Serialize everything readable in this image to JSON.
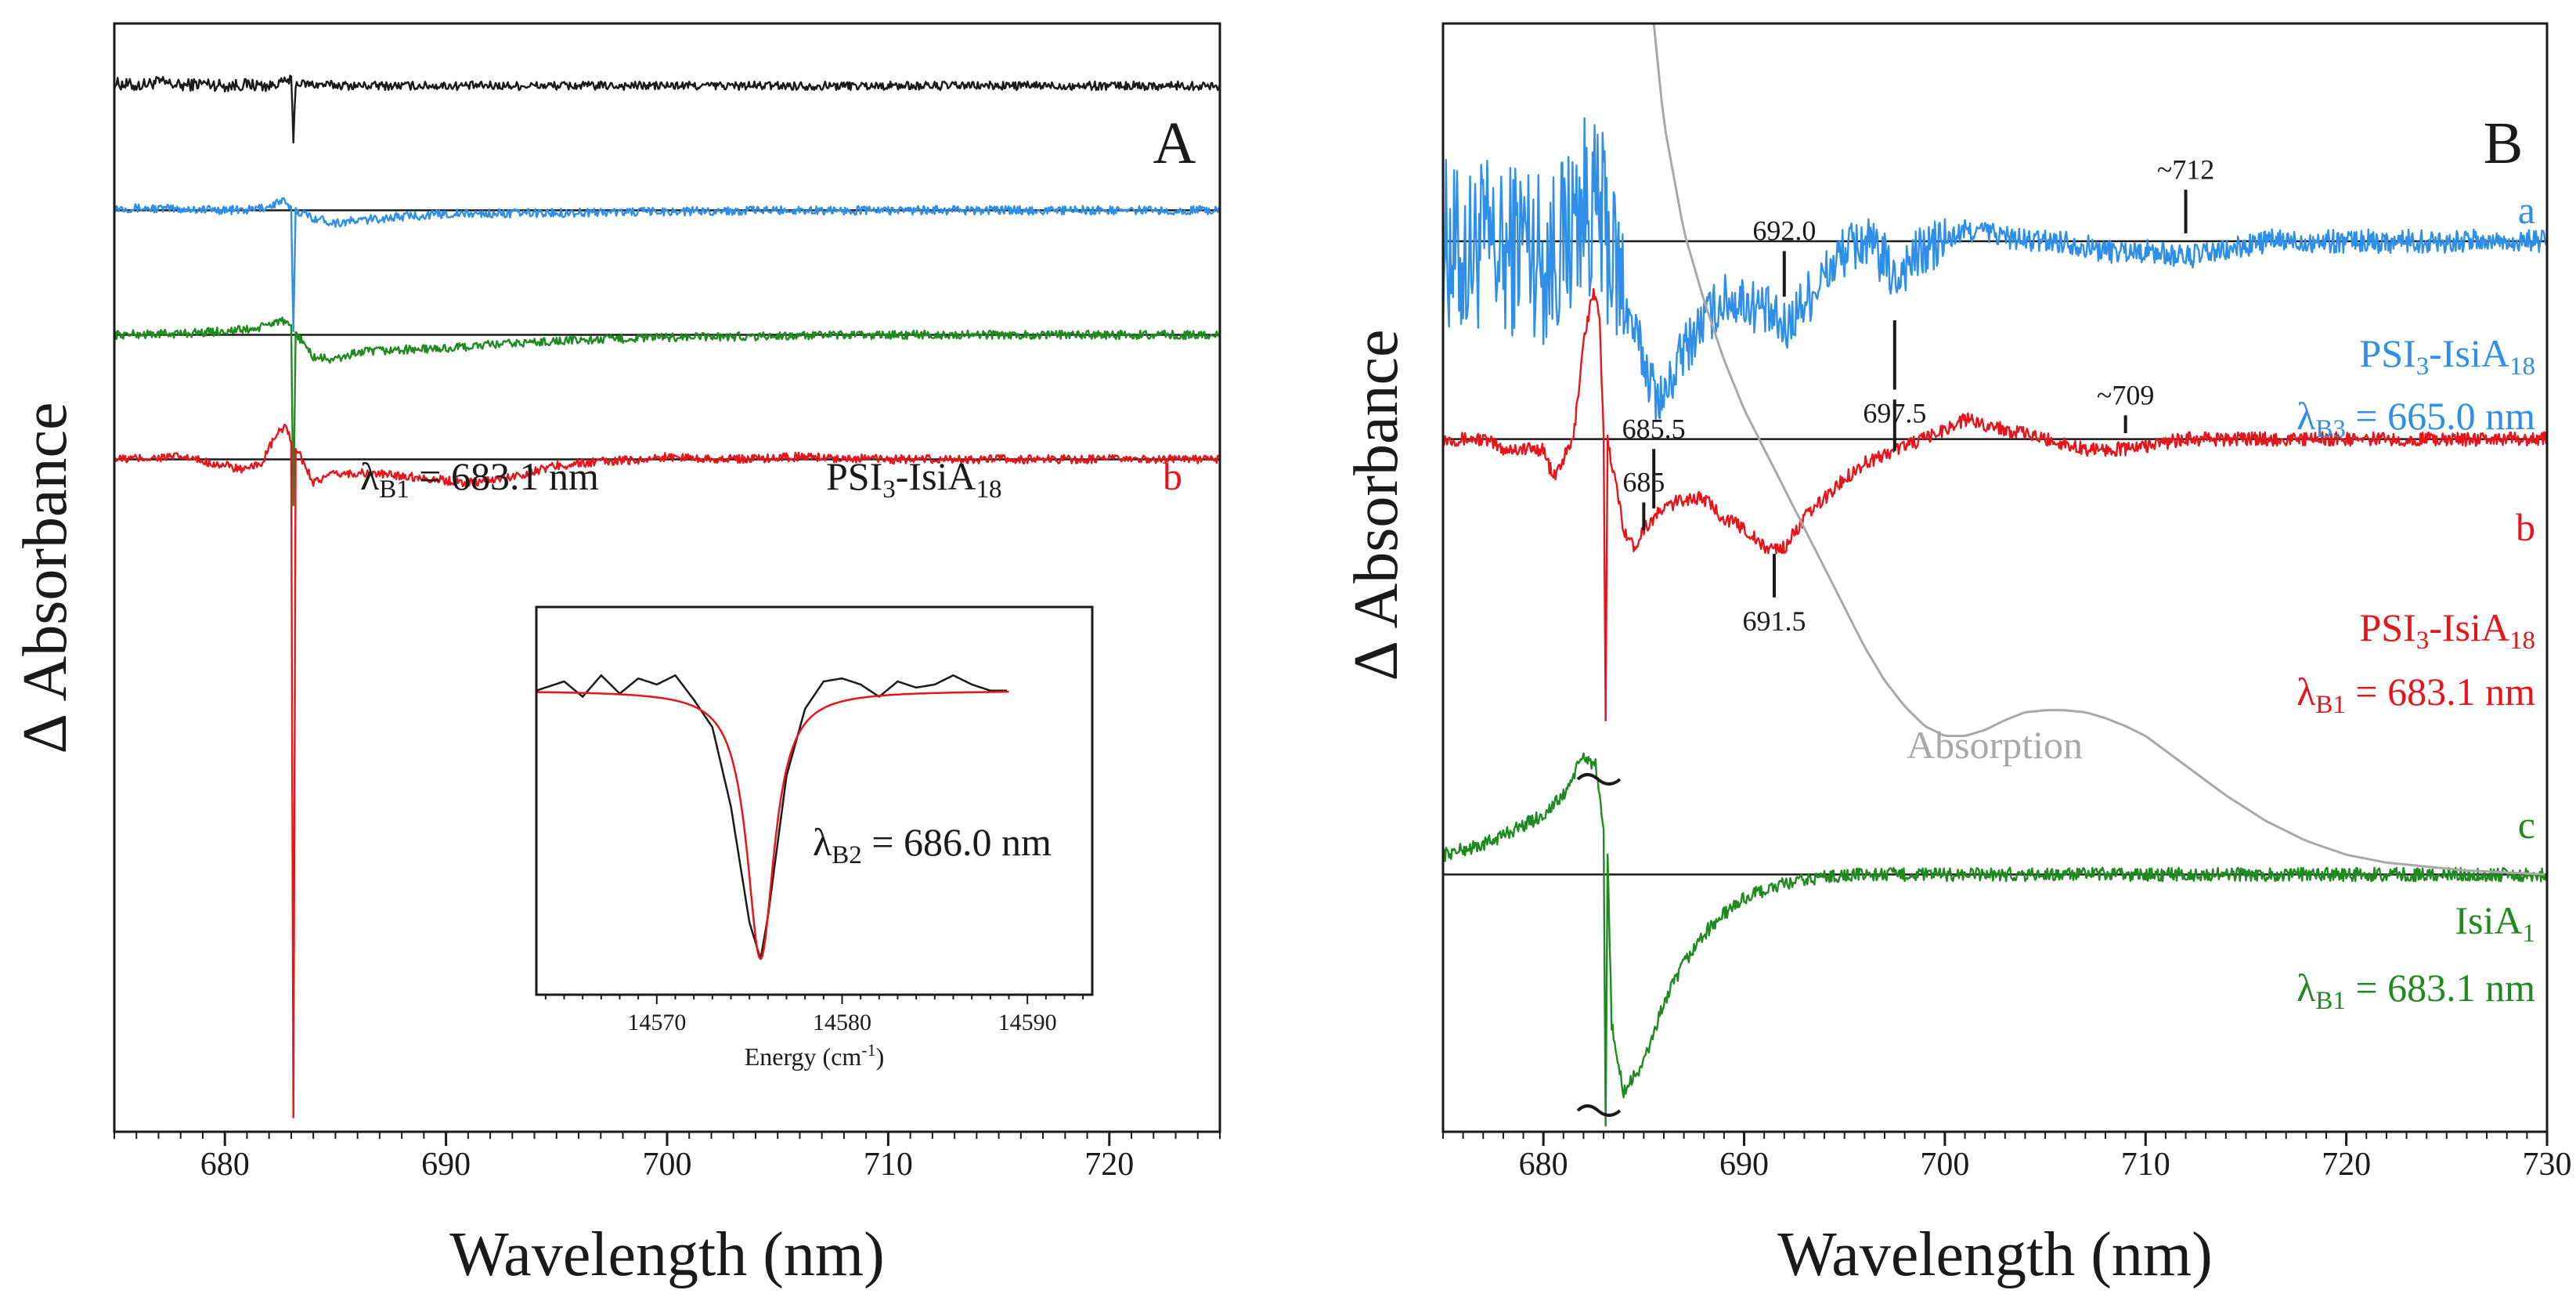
{
  "colors": {
    "black": "#1a1a1a",
    "blue": "#2f8fe8",
    "green": "#1f8a1f",
    "red": "#e8141a",
    "gray": "#a8a8a8"
  },
  "chart_data": [
    {
      "id": "A",
      "type": "line",
      "panel_label": "A",
      "xlabel": "Wavelength (nm)",
      "ylabel": "Δ Absorbance",
      "xlim": [
        675,
        725
      ],
      "ylim": [
        -8.4,
        0.5
      ],
      "xticks": [
        "680",
        "690",
        "700",
        "710",
        "720"
      ],
      "series": [
        {
          "name": "black trace",
          "color": "black",
          "offset": 0,
          "x": [
            675,
            676,
            677,
            678,
            679,
            680,
            681,
            682,
            683,
            683.1,
            683.2,
            684,
            686,
            690,
            695,
            700,
            705,
            710,
            715,
            720,
            725
          ],
          "y": [
            0.02,
            0.0,
            0.03,
            0.0,
            0.02,
            0.0,
            0.01,
            0.0,
            0.05,
            -0.45,
            0.02,
            0.01,
            0.0,
            0.0,
            0.0,
            0.0,
            0.0,
            0.0,
            0.0,
            0.0,
            0.0
          ]
        },
        {
          "name": "blue trace",
          "color": "blue",
          "offset": -1.0,
          "x": [
            675,
            678,
            681,
            682,
            682.6,
            683,
            683.1,
            683.2,
            684,
            685,
            688,
            690,
            695,
            700,
            705,
            710,
            715,
            720,
            725
          ],
          "y": [
            0.02,
            0.01,
            0.0,
            0.03,
            0.08,
            0.0,
            -0.95,
            0.0,
            -0.06,
            -0.1,
            -0.05,
            -0.03,
            -0.02,
            -0.01,
            0.0,
            0.0,
            0.0,
            0.0,
            0.0
          ]
        },
        {
          "name": "green trace",
          "color": "green",
          "offset": -2.0,
          "x": [
            675,
            678,
            680,
            681.5,
            682.5,
            683,
            683.1,
            683.2,
            684,
            685,
            686,
            688,
            690,
            692,
            695,
            700,
            705,
            710,
            715,
            720,
            725
          ],
          "y": [
            0.0,
            0.01,
            0.03,
            0.05,
            0.12,
            0.05,
            -1.4,
            0.02,
            -0.18,
            -0.2,
            -0.14,
            -0.12,
            -0.11,
            -0.08,
            -0.05,
            -0.02,
            -0.01,
            0.0,
            0.0,
            0.0,
            0.0
          ]
        },
        {
          "name": "red trace",
          "color": "red",
          "offset": -3.0,
          "x": [
            675,
            678,
            680,
            681,
            681.7,
            682.3,
            682.8,
            683,
            683.1,
            683.2,
            684,
            685,
            686,
            688,
            690,
            691,
            693,
            695,
            697,
            699,
            700,
            703,
            706,
            710,
            715,
            720,
            725
          ],
          "y": [
            0.0,
            0.02,
            -0.05,
            -0.09,
            -0.02,
            0.19,
            0.27,
            0.1,
            -5.3,
            0.1,
            -0.18,
            -0.12,
            -0.11,
            -0.13,
            -0.17,
            -0.19,
            -0.14,
            -0.05,
            -0.02,
            0.0,
            0.02,
            0.0,
            0.02,
            0.0,
            0.0,
            0.0,
            0.0
          ]
        }
      ],
      "baselines": [
        {
          "y": -1.0
        },
        {
          "y": -2.0
        },
        {
          "y": -3.0
        }
      ],
      "annotations": {
        "lambda_b1": "λB1 = 683.1 nm",
        "psi_label": "PSI3-IsiA18",
        "trace_b": "b"
      },
      "inset": {
        "xlabel": "Energy (cm-1)",
        "xlim": [
          14563.5,
          14593.5
        ],
        "xticks": [
          "14570",
          "14580",
          "14590"
        ],
        "annotation": "λB2 = 686.0 nm",
        "data": {
          "x": [
            14563.5,
            14565,
            14566,
            14567,
            14568,
            14569,
            14570,
            14571,
            14572,
            14573,
            14574,
            14575,
            14575.6,
            14576,
            14577,
            14578,
            14579,
            14580,
            14581,
            14582,
            14583,
            14584,
            14585,
            14586,
            14587,
            14588,
            14589
          ],
          "y": [
            0.0,
            0.15,
            -0.1,
            0.25,
            -0.05,
            0.2,
            0.1,
            0.25,
            -0.15,
            -0.6,
            -1.9,
            -3.8,
            -4.4,
            -3.7,
            -1.4,
            -0.3,
            0.15,
            0.2,
            0.1,
            -0.1,
            0.15,
            0.05,
            0.1,
            0.25,
            0.1,
            0.0,
            0.0
          ]
        },
        "fit": {
          "center": 14575.6,
          "width": 0.9,
          "depth": 4.4
        }
      }
    },
    {
      "id": "B",
      "type": "line",
      "panel_label": "B",
      "xlabel": "Wavelength (nm)",
      "ylabel": "Δ Absorbance",
      "xlim": [
        675,
        730
      ],
      "ylim": [
        -3.5,
        2.1
      ],
      "xticks": [
        "680",
        "690",
        "700",
        "710",
        "720",
        "730"
      ],
      "series": [
        {
          "name": "a: PSI3-IsiA18, λB3 = 665.0 nm",
          "color": "blue",
          "offset": 1.0,
          "x": [
            675,
            676,
            677,
            678,
            679,
            680,
            681,
            682,
            683,
            684,
            685,
            685.5,
            686,
            687,
            688,
            689,
            690,
            691,
            692,
            693,
            694,
            695,
            696,
            697,
            697.5,
            698,
            699,
            700,
            701,
            702,
            704,
            706,
            708,
            710,
            712,
            714,
            716,
            720,
            725,
            730
          ],
          "y": [
            0.0,
            -0.1,
            0.0,
            -0.1,
            0.05,
            -0.1,
            0.0,
            0.2,
            0.1,
            -0.3,
            -0.6,
            -0.75,
            -0.8,
            -0.55,
            -0.4,
            -0.3,
            -0.3,
            -0.35,
            -0.45,
            -0.3,
            -0.18,
            -0.05,
            0.0,
            -0.1,
            -0.2,
            -0.12,
            -0.05,
            0.0,
            0.05,
            0.05,
            0.0,
            0.0,
            -0.05,
            -0.05,
            -0.08,
            -0.05,
            0.0,
            0.0,
            0.0,
            0.0
          ]
        },
        {
          "name": "b: PSI3-IsiA18, λB1 = 683.1 nm",
          "color": "red",
          "offset": 0.0,
          "x": [
            675,
            677,
            678,
            679,
            680,
            680.5,
            681,
            681.5,
            682,
            682.5,
            682.8,
            683,
            683.1,
            683.2,
            684,
            684.5,
            685,
            686,
            687,
            688,
            689,
            690,
            691,
            692,
            693,
            694,
            695,
            696,
            697,
            698,
            699,
            700,
            701,
            703,
            705,
            707,
            709,
            712,
            715,
            720,
            725,
            730
          ],
          "y": [
            0.0,
            0.0,
            -0.05,
            -0.05,
            -0.05,
            -0.2,
            -0.1,
            0.0,
            0.5,
            0.75,
            0.6,
            0.0,
            -1.4,
            0.0,
            -0.45,
            -0.55,
            -0.45,
            -0.35,
            -0.3,
            -0.3,
            -0.4,
            -0.45,
            -0.55,
            -0.55,
            -0.4,
            -0.3,
            -0.2,
            -0.12,
            -0.08,
            -0.03,
            0.0,
            0.05,
            0.1,
            0.05,
            0.0,
            -0.05,
            -0.05,
            0.0,
            0.0,
            0.0,
            0.0,
            0.0
          ]
        },
        {
          "name": "c: IsiA1, λB1 = 683.1 nm",
          "color": "green",
          "offset": -2.2,
          "x": [
            675,
            677,
            678,
            679,
            680,
            681,
            681.5,
            682,
            682.6,
            683,
            683.1,
            683.2,
            683.4,
            683.6,
            684,
            685,
            686,
            687,
            688,
            689,
            690,
            691,
            692,
            693,
            694,
            696,
            700,
            705,
            710,
            720,
            730
          ],
          "y": [
            0.1,
            0.15,
            0.2,
            0.25,
            0.3,
            0.4,
            0.5,
            0.6,
            0.55,
            0.2,
            -1.3,
            0.1,
            -0.75,
            -0.9,
            -1.1,
            -0.95,
            -0.65,
            -0.45,
            -0.3,
            -0.2,
            -0.12,
            -0.08,
            -0.05,
            -0.03,
            -0.01,
            0.0,
            0.0,
            0.0,
            0.0,
            0.0,
            0.0
          ]
        },
        {
          "name": "Absorption",
          "color": "gray",
          "offset": 0.0,
          "x": [
            685.5,
            686,
            687,
            688,
            689,
            690,
            691,
            692,
            693,
            694,
            695,
            696,
            697,
            698,
            699,
            700,
            701,
            702,
            703,
            704,
            705,
            706,
            707,
            708,
            709,
            710,
            712,
            714,
            716,
            718,
            720,
            722,
            724,
            726,
            728,
            730
          ],
          "y": [
            2.1,
            1.6,
            1.05,
            0.7,
            0.4,
            0.15,
            -0.05,
            -0.25,
            -0.45,
            -0.65,
            -0.85,
            -1.05,
            -1.22,
            -1.35,
            -1.45,
            -1.5,
            -1.5,
            -1.47,
            -1.42,
            -1.38,
            -1.37,
            -1.37,
            -1.38,
            -1.41,
            -1.45,
            -1.5,
            -1.65,
            -1.8,
            -1.93,
            -2.03,
            -2.1,
            -2.14,
            -2.16,
            -2.18,
            -2.19,
            -2.2
          ]
        }
      ],
      "baselines": [
        {
          "y": 1.0
        },
        {
          "y": 0.0
        },
        {
          "y": -2.2
        }
      ],
      "markers": [
        {
          "x": 685.5,
          "label": "685.5",
          "label_pos": "above",
          "y1": -0.35,
          "y2": -0.05
        },
        {
          "x": 692.0,
          "label": "692.0",
          "label_pos": "above",
          "y1": 0.72,
          "y2": 0.95
        },
        {
          "x": 697.5,
          "label": "697.5",
          "label_pos": "below",
          "y1": 0.25,
          "y2": 0.6
        },
        {
          "x": 712,
          "label": "~712",
          "label_pos": "above",
          "y1": 1.04,
          "y2": 1.26
        },
        {
          "x": 709,
          "label": "~709",
          "label_pos": "above",
          "y1": 0.03,
          "y2": 0.12
        },
        {
          "x": 697.5,
          "label": "",
          "label_pos": "none",
          "y1": -0.06,
          "y2": 0.2
        },
        {
          "x": 685,
          "label": "685",
          "label_pos": "above",
          "y1": -0.46,
          "y2": -0.32
        },
        {
          "x": 691.5,
          "label": "691.5",
          "label_pos": "below",
          "y1": -0.8,
          "y2": -0.58
        }
      ],
      "series_labels": {
        "a": "a",
        "a_name": "PSI3-IsiA18",
        "a_lambda": "λB3 = 665.0 nm",
        "b": "b",
        "b_name": "PSI3-IsiA18",
        "b_lambda": "λB1 = 683.1 nm",
        "c": "c",
        "c_name": "IsiA1",
        "c_lambda": "λB1 = 683.1 nm",
        "absorption": "Absorption"
      }
    }
  ]
}
